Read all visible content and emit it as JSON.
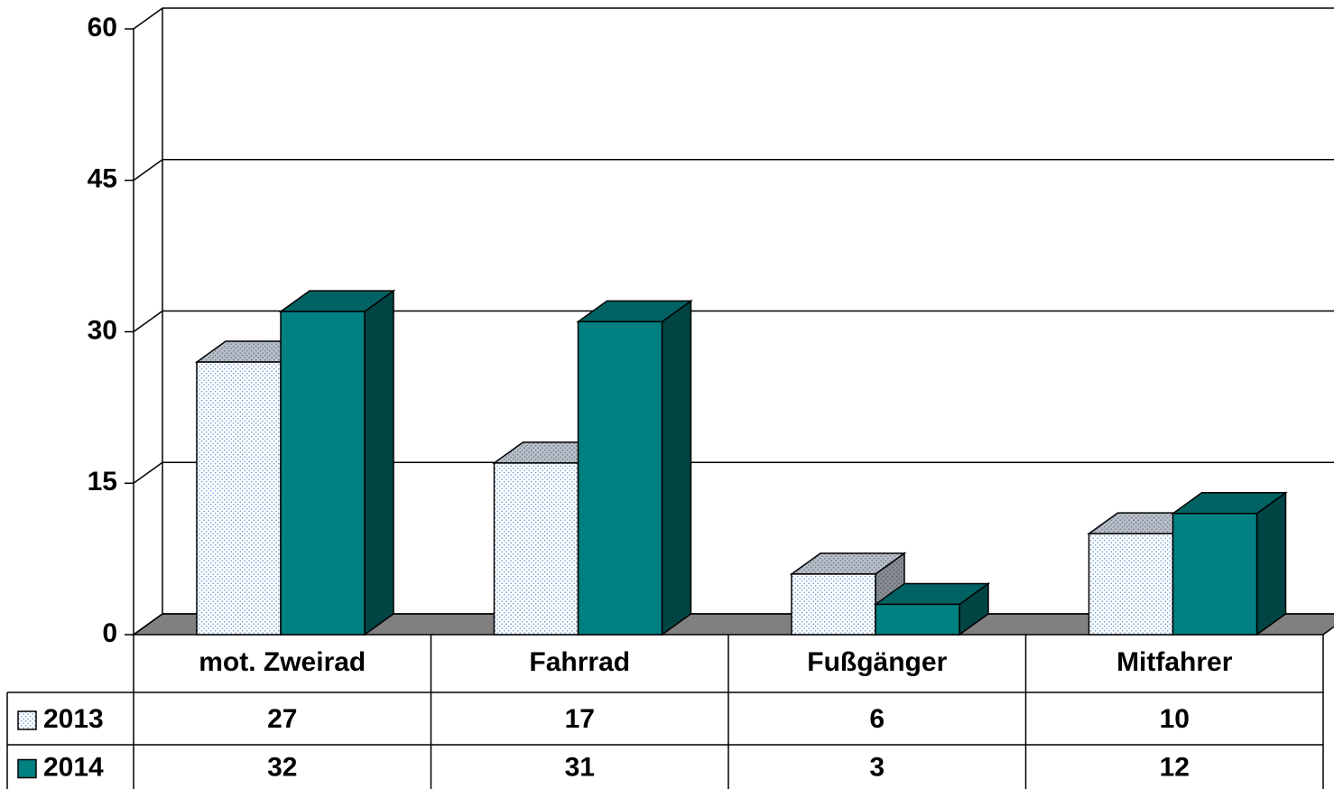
{
  "chart_data": {
    "type": "bar",
    "categories": [
      "mot. Zweirad",
      "Fahrrad",
      "Fußgänger",
      "Mitfahrer"
    ],
    "series": [
      {
        "name": "2013",
        "color": "#ffffff",
        "values": [
          27,
          17,
          6,
          10
        ]
      },
      {
        "name": "2014",
        "color": "#008080",
        "values": [
          32,
          31,
          3,
          12
        ]
      }
    ],
    "ylim": [
      0,
      60
    ],
    "yticks": [
      0,
      15,
      30,
      45,
      60
    ],
    "grid": true
  }
}
